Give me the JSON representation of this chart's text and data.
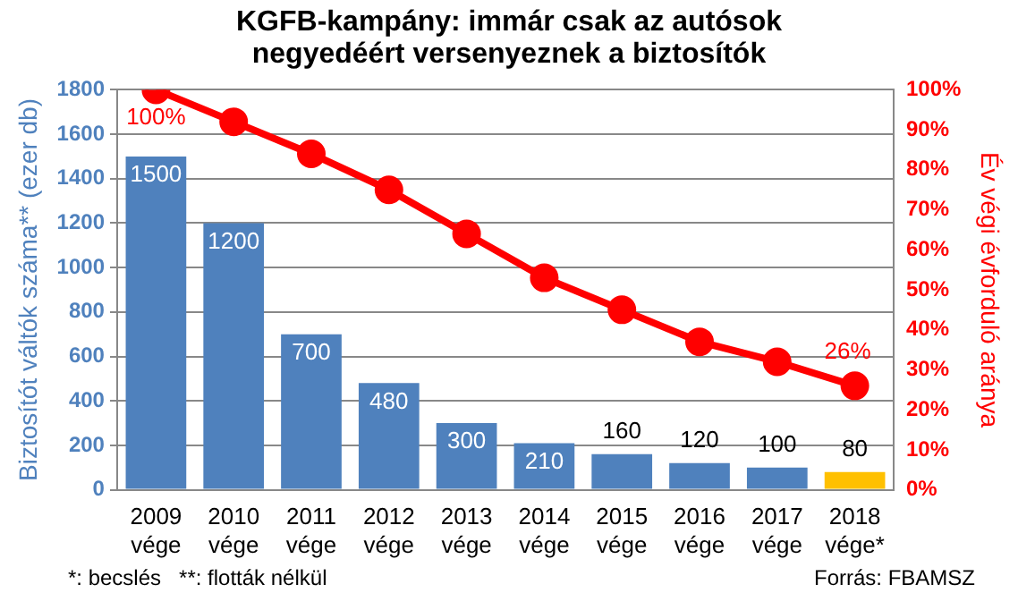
{
  "chart_data": {
    "type": "bar",
    "title": "KGFB-kampány: immár csak az autósok negyedéért versenyeznek a biztosítók",
    "ylabel": "Biztosítót váltók száma** (ezer db)",
    "y2label": "Év végi évforduló aránya",
    "categories": [
      "2009 vége",
      "2010 vége",
      "2011 vége",
      "2012 vége",
      "2013 vége",
      "2014 vége",
      "2015 vége",
      "2016 vége",
      "2017 vége",
      "2018 vége*"
    ],
    "series": [
      {
        "values": [
          1500,
          1200,
          700,
          480,
          300,
          210,
          160,
          120,
          100,
          80
        ],
        "colors": [
          "#4f81bd",
          "#4f81bd",
          "#4f81bd",
          "#4f81bd",
          "#4f81bd",
          "#4f81bd",
          "#4f81bd",
          "#4f81bd",
          "#4f81bd",
          "#ffc000"
        ]
      },
      {
        "type": "line",
        "axis": "y2",
        "color": "#ff0000",
        "values": [
          100,
          92,
          84,
          75,
          64,
          53,
          45,
          37,
          32,
          26
        ],
        "value_labels": [
          "100%",
          null,
          null,
          null,
          null,
          null,
          null,
          null,
          null,
          "26%"
        ]
      }
    ],
    "data_labels": true,
    "marker": "circle",
    "grid": "y",
    "legend": false,
    "ylim": [
      0,
      1800
    ],
    "yticks": [
      0,
      200,
      400,
      600,
      800,
      1000,
      1200,
      1400,
      1600,
      1800
    ],
    "y2lim": [
      0,
      100
    ],
    "y2ticks": [
      {
        "value": 0,
        "label": "0%"
      },
      {
        "value": 10,
        "label": "10%"
      },
      {
        "value": 20,
        "label": "20%"
      },
      {
        "value": 30,
        "label": "30%"
      },
      {
        "value": 40,
        "label": "40%"
      },
      {
        "value": 50,
        "label": "50%"
      },
      {
        "value": 60,
        "label": "60%"
      },
      {
        "value": 70,
        "label": "70%"
      },
      {
        "value": 80,
        "label": "80%"
      },
      {
        "value": 90,
        "label": "90%"
      },
      {
        "value": 100,
        "label": "100%"
      }
    ],
    "annotations": [
      "*: becslés   **: flották nélkül",
      "Forrás: FBAMSZ"
    ]
  }
}
